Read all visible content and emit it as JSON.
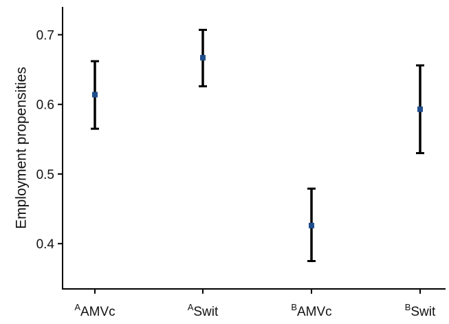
{
  "chart_data": {
    "type": "scatter",
    "subtype": "point-with-error-bars",
    "title": "",
    "xlabel": "",
    "ylabel": "Employment propensities",
    "ylim": [
      0.335,
      0.74
    ],
    "y_ticks": [
      0.4,
      0.5,
      0.6,
      0.7
    ],
    "y_tick_labels": [
      "0.4",
      "0.5",
      "0.6",
      "0.7"
    ],
    "categories": [
      {
        "superscript": "A",
        "label": "AMVc"
      },
      {
        "superscript": "A",
        "label": "Swit"
      },
      {
        "superscript": "B",
        "label": "AMVc"
      },
      {
        "superscript": "B",
        "label": "Swit"
      }
    ],
    "points": [
      {
        "value": 0.614,
        "lower": 0.565,
        "upper": 0.662
      },
      {
        "value": 0.667,
        "lower": 0.626,
        "upper": 0.707
      },
      {
        "value": 0.426,
        "lower": 0.375,
        "upper": 0.479
      },
      {
        "value": 0.593,
        "lower": 0.53,
        "upper": 0.656
      }
    ],
    "grid": false,
    "legend": "none",
    "colors": {
      "point": "#1f4e8c",
      "errorbar": "#000000",
      "axis": "#000000"
    }
  }
}
